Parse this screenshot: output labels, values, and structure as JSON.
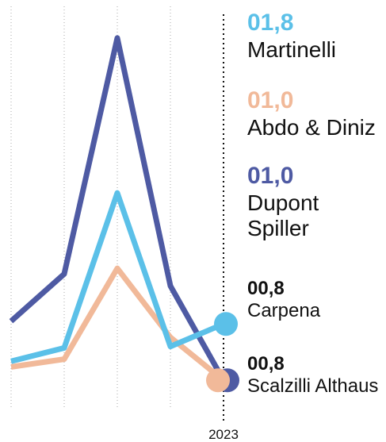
{
  "chart_data": {
    "type": "line",
    "categories": [
      null,
      null,
      null,
      null,
      "2023"
    ],
    "ylim": [
      0,
      6.4
    ],
    "series": [
      {
        "name": "Dupont Spiller",
        "color": "#4e5aa3",
        "values": [
          1.84,
          2.51,
          5.86,
          2.34,
          1.0
        ],
        "value_label": "01,0"
      },
      {
        "name": "Abdo & Diniz",
        "color": "#f1b999",
        "values": [
          1.19,
          1.3,
          2.59,
          1.61,
          1.0
        ],
        "value_label": "01,0"
      },
      {
        "name": "Martinelli",
        "color": "#5bc0e8",
        "values": [
          1.27,
          1.46,
          3.66,
          1.48,
          1.8
        ],
        "value_label": "01,8"
      }
    ],
    "annotations": [
      {
        "label": "Carpena",
        "value_label": "00,8"
      },
      {
        "label": "Scalzilli Althaus",
        "value_label": "00,8"
      }
    ]
  }
}
